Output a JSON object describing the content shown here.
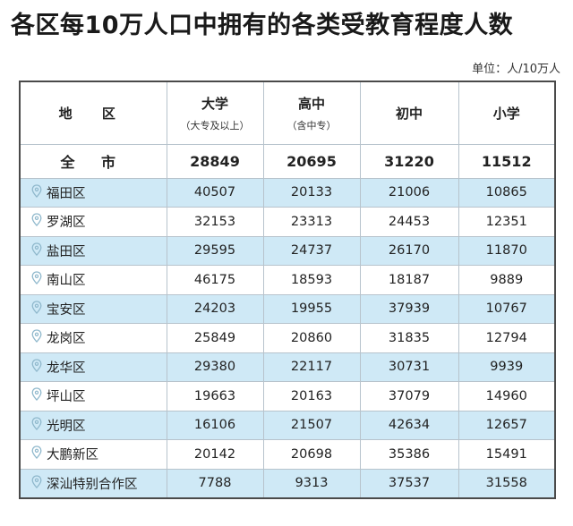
{
  "title": "各区每10万人口中拥有的各类受教育程度人数",
  "unit": "单位：人/10万人",
  "header": {
    "region": "地 区",
    "university": "大学",
    "university_sub": "大专及以上",
    "high_school": "高中",
    "high_school_sub": "含中专",
    "middle_school": "初中",
    "primary_school": "小学"
  },
  "total": {
    "name": "全 市",
    "values": [
      "28849",
      "20695",
      "31220",
      "11512"
    ]
  },
  "rows": [
    {
      "name": "福田区",
      "values": [
        "40507",
        "20133",
        "21006",
        "10865"
      ]
    },
    {
      "name": "罗湖区",
      "values": [
        "32153",
        "23313",
        "24453",
        "12351"
      ]
    },
    {
      "name": "盐田区",
      "values": [
        "29595",
        "24737",
        "26170",
        "11870"
      ]
    },
    {
      "name": "南山区",
      "values": [
        "46175",
        "18593",
        "18187",
        "9889"
      ]
    },
    {
      "name": "宝安区",
      "values": [
        "24203",
        "19955",
        "37939",
        "10767"
      ]
    },
    {
      "name": "龙岗区",
      "values": [
        "25849",
        "20860",
        "31835",
        "12794"
      ]
    },
    {
      "name": "龙华区",
      "values": [
        "29380",
        "22117",
        "30731",
        "9939"
      ]
    },
    {
      "name": "坪山区",
      "values": [
        "19663",
        "20163",
        "37079",
        "14960"
      ]
    },
    {
      "name": "光明区",
      "values": [
        "16106",
        "21507",
        "42634",
        "12657"
      ]
    },
    {
      "name": "大鹏新区",
      "values": [
        "20142",
        "20698",
        "35386",
        "15491"
      ]
    },
    {
      "name": "深汕特别合作区",
      "values": [
        "7788",
        "9313",
        "37537",
        "31558"
      ]
    }
  ],
  "colors": {
    "row_shade": "#cfe9f6",
    "pin": "#8fb8cc"
  },
  "icons": {
    "row_marker": "location-pin-icon"
  }
}
